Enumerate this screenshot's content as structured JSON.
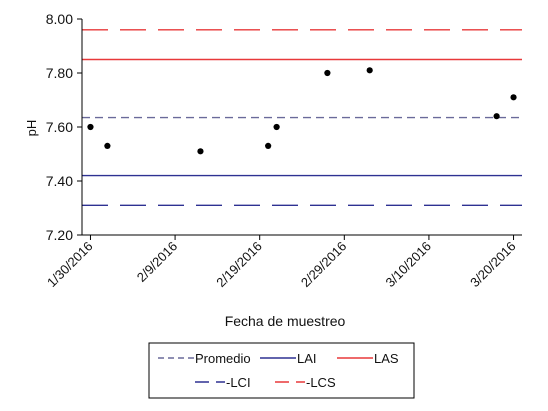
{
  "chart_data": {
    "type": "scatter",
    "title": "",
    "xlabel": "Fecha de muestreo",
    "ylabel": "pH",
    "xlim": [
      "2016-01-29",
      "2016-03-21"
    ],
    "ylim": [
      7.2,
      8.0
    ],
    "y_ticks": [
      "7.20",
      "7.40",
      "7.60",
      "7.80",
      "8.00"
    ],
    "x_ticks": [
      {
        "date": "2016-01-30",
        "label": "1/30/2016"
      },
      {
        "date": "2016-02-09",
        "label": "2/9/2016"
      },
      {
        "date": "2016-02-19",
        "label": "2/19/2016"
      },
      {
        "date": "2016-02-29",
        "label": "2/29/2016"
      },
      {
        "date": "2016-03-10",
        "label": "3/10/2016"
      },
      {
        "date": "2016-03-20",
        "label": "3/20/2016"
      }
    ],
    "grid": false,
    "legend_position": "bottom",
    "points": [
      {
        "x": "2016-01-30",
        "y": 7.6
      },
      {
        "x": "2016-02-01",
        "y": 7.53
      },
      {
        "x": "2016-02-12",
        "y": 7.51
      },
      {
        "x": "2016-02-20",
        "y": 7.53
      },
      {
        "x": "2016-02-21",
        "y": 7.6
      },
      {
        "x": "2016-02-27",
        "y": 7.8
      },
      {
        "x": "2016-03-03",
        "y": 7.81
      },
      {
        "x": "2016-03-18",
        "y": 7.64
      },
      {
        "x": "2016-03-20",
        "y": 7.71
      }
    ],
    "reference_lines": [
      {
        "name": "Promedio",
        "y": 7.635,
        "color": "#6a6a9a",
        "style": "short-dash"
      },
      {
        "name": "LAI",
        "y": 7.42,
        "color": "#2e3192",
        "style": "solid"
      },
      {
        "name": "LAS",
        "y": 7.85,
        "color": "#e8393a",
        "style": "solid"
      },
      {
        "name": "-LCI",
        "y": 7.31,
        "color": "#2e3192",
        "style": "long-dash"
      },
      {
        "name": "-LCS",
        "y": 7.96,
        "color": "#e8393a",
        "style": "long-dash"
      }
    ]
  }
}
